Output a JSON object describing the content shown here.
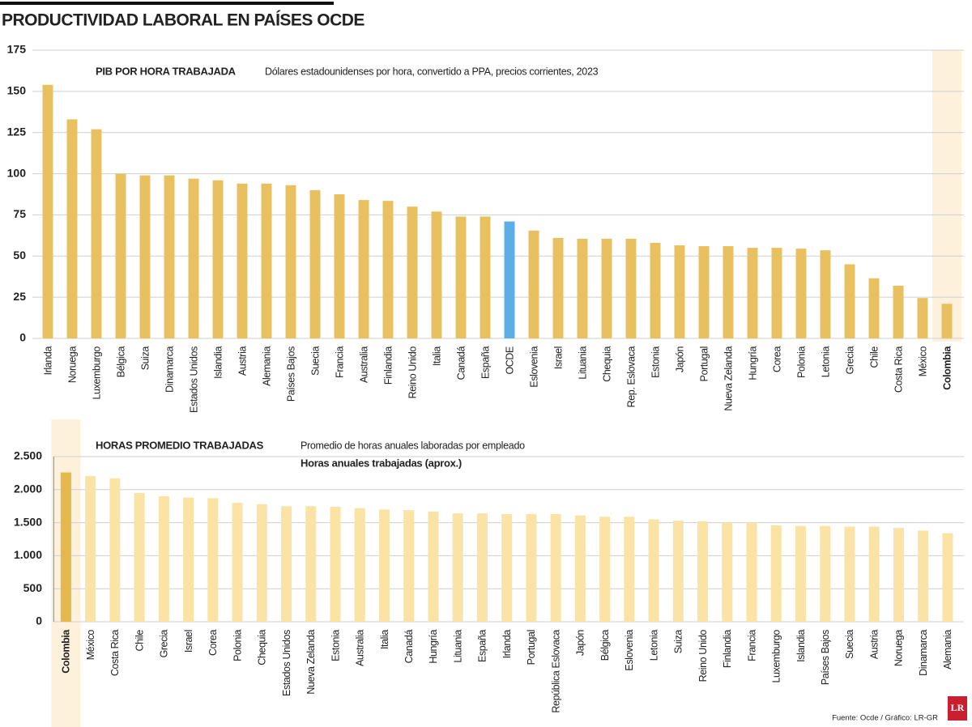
{
  "title": "PRODUCTIVIDAD LABORAL EN PAÍSES OCDE",
  "source": "Fuente: Ocde / Gráfico: LR-GR",
  "logo": "LR",
  "chart_data": [
    {
      "type": "bar",
      "title": "PIB POR HORA TRABAJADA",
      "subtitle": "Dólares estadounidenses por hora, convertido a PPA, precios corrientes, 2023",
      "categories": [
        "Irlanda",
        "Noruega",
        "Luxemburgo",
        "Bélgica",
        "Suiza",
        "Dinamarca",
        "Estados Unidos",
        "Islandia",
        "Austria",
        "Alemania",
        "Países Bajos",
        "Suecia",
        "Francia",
        "Australia",
        "Finlandia",
        "Reino Unido",
        "Italia",
        "Canadá",
        "España",
        "OCDE",
        "Eslovenia",
        "Israel",
        "Lituania",
        "Chequia",
        "Rep. Eslovaca",
        "Estonia",
        "Japón",
        "Portugal",
        "Nueva Zelanda",
        "Hungría",
        "Corea",
        "Polonia",
        "Letonia",
        "Grecia",
        "Chile",
        "Costa Rica",
        "México",
        "Colombia"
      ],
      "values": [
        154,
        133,
        127,
        100,
        99,
        99,
        97,
        96,
        94,
        94,
        93,
        90,
        87.5,
        84,
        83.5,
        80,
        77,
        74,
        74,
        71,
        65.5,
        61,
        60.5,
        60.5,
        60.5,
        58,
        56.5,
        56,
        56,
        55,
        55,
        54.5,
        53.5,
        45,
        36.5,
        32,
        24.5,
        21
      ],
      "colors": [
        "#e8c060",
        "#e8c060",
        "#e8c060",
        "#e8c060",
        "#e8c060",
        "#e8c060",
        "#e8c060",
        "#e8c060",
        "#e8c060",
        "#e8c060",
        "#e8c060",
        "#e8c060",
        "#e8c060",
        "#e8c060",
        "#e8c060",
        "#e8c060",
        "#e8c060",
        "#e8c060",
        "#e8c060",
        "#5ab0e6",
        "#e8c060",
        "#e8c060",
        "#e8c060",
        "#e8c060",
        "#e8c060",
        "#e8c060",
        "#e8c060",
        "#e8c060",
        "#e8c060",
        "#e8c060",
        "#e8c060",
        "#e8c060",
        "#e8c060",
        "#e8c060",
        "#e8c060",
        "#e8c060",
        "#e8c060",
        "#e8c060"
      ],
      "highlight": 37,
      "highlight_band_color": "#fdf1db",
      "ylim": [
        0,
        175
      ],
      "yticks": [
        0,
        25,
        50,
        75,
        100,
        125,
        150,
        175
      ],
      "grid": true
    },
    {
      "type": "bar",
      "title": "HORAS PROMEDIO TRABAJADAS",
      "subtitle": "Promedio de horas anuales laboradas por empleado",
      "categories": [
        "Colombia",
        "México",
        "Costa Rica",
        "Chile",
        "Grecia",
        "Israel",
        "Corea",
        "Polonia",
        "Chequia",
        "Estados Unidos",
        "Nueva Zelanda",
        "Estonia",
        "Australia",
        "Italia",
        "Canadá",
        "Hungría",
        "Lituania",
        "España",
        "Irlanda",
        "Portugal",
        "República Eslovaca",
        "Japón",
        "Bélgica",
        "Eslovenia",
        "Letonia",
        "Suiza",
        "Reino Unido",
        "Finlandia",
        "Francia",
        "Luxemburgo",
        "Islandia",
        "Países Bajos",
        "Suecia",
        "Austria",
        "Noruega",
        "Dinamarca",
        "Alemania"
      ],
      "series": [
        {
          "name": "Horas anuales trabajadas (aprox.)",
          "color": "#fbe3a6",
          "values": [
            2260,
            2207,
            2170,
            1950,
            1900,
            1880,
            1870,
            1800,
            1780,
            1750,
            1750,
            1740,
            1720,
            1700,
            1690,
            1670,
            1640,
            1640,
            1630,
            1630,
            1630,
            1610,
            1590,
            1590,
            1550,
            1530,
            1520,
            1500,
            1500,
            1460,
            1450,
            1450,
            1440,
            1440,
            1420,
            1380,
            1340
          ]
        }
      ],
      "highlight": 0,
      "highlight_color": "#e5b84e",
      "highlight_band_color": "#fdf1db",
      "ylim": [
        0,
        2500
      ],
      "yticks": [
        0,
        500,
        {
          "value": 1000,
          "label": "1.000"
        },
        {
          "value": 1500,
          "label": "1.500"
        },
        {
          "value": 2000,
          "label": "2.000"
        },
        {
          "value": 2500,
          "label": "2.500"
        }
      ],
      "grid": true
    }
  ]
}
